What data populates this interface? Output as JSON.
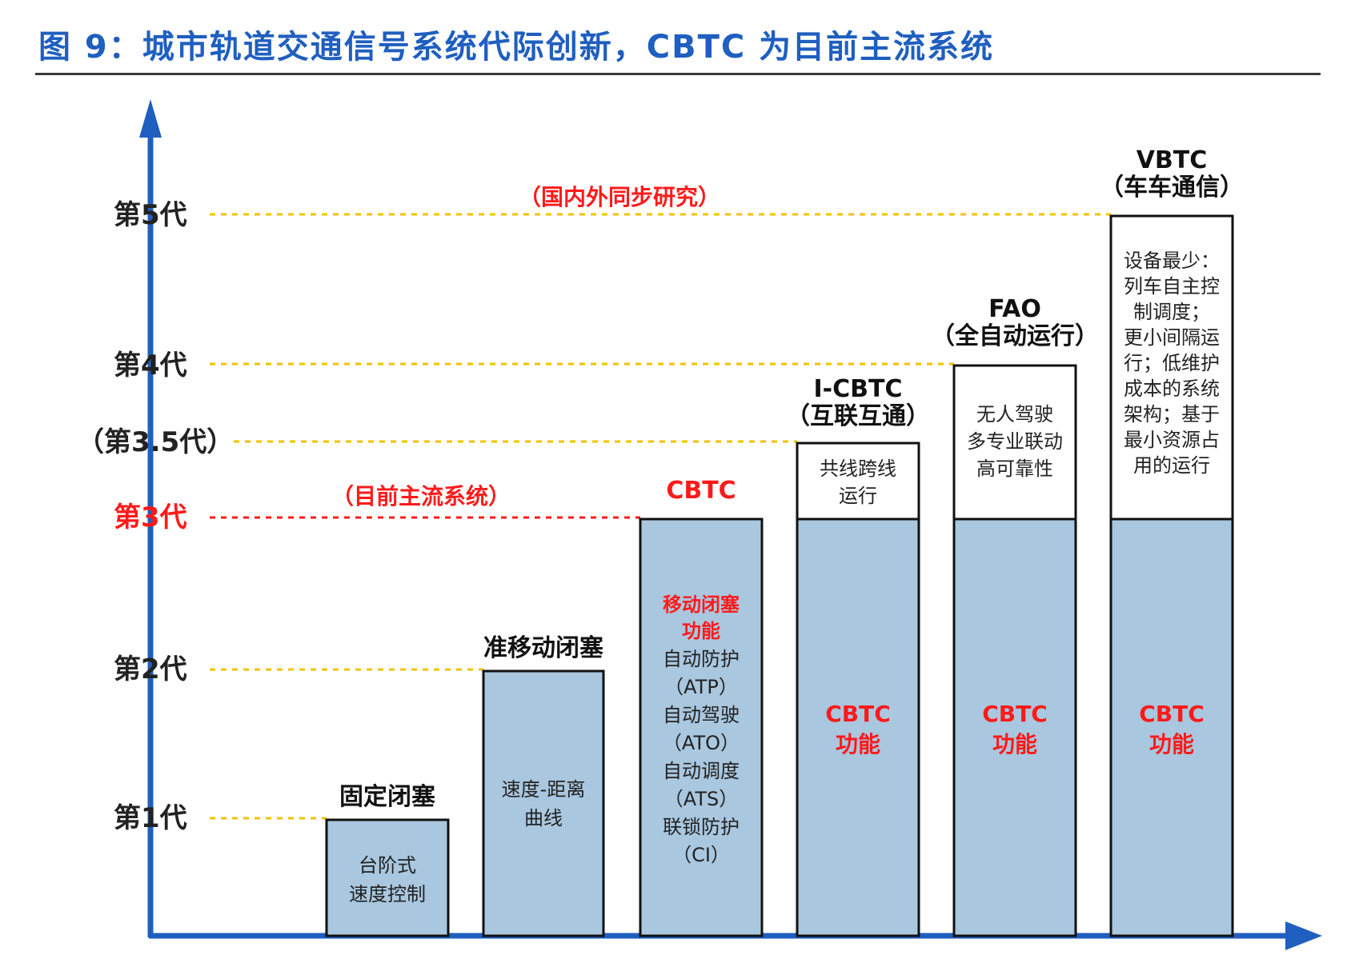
{
  "title": "图 9：城市轨道交通信号系统代际创新，CBTC 为目前主流系统",
  "colors": {
    "accent": "#1f5fbf",
    "box_fill": "#a9c7df",
    "red": "#ff1a1a",
    "yellow_line": "#f2c200"
  },
  "levels": {
    "gen1": "第1代",
    "gen2": "第2代",
    "gen3": "第3代",
    "gen35": "（第3.5代）",
    "gen4": "第4代",
    "gen5": "第5代"
  },
  "notes": {
    "mainstream": "（目前主流系统）",
    "research": "（国内外同步研究）"
  },
  "bars": {
    "b1": {
      "caption": "固定闭塞",
      "lines": [
        "台阶式",
        "速度控制"
      ]
    },
    "b2": {
      "caption": "准移动闭塞",
      "lines": [
        "速度-距离",
        "曲线"
      ]
    },
    "b3": {
      "caption": "CBTC",
      "red_lines": [
        "移动闭塞",
        "功能"
      ],
      "lines": [
        "自动防护",
        "（ATP）",
        "自动驾驶",
        "（ATO）",
        "自动调度",
        "（ATS）",
        "联锁防护",
        "（CI）"
      ]
    },
    "b4": {
      "caption": "I-CBTC",
      "caption2": "（互联互通）",
      "top_lines": [
        "共线跨线",
        "运行"
      ],
      "base_lines": [
        "CBTC",
        "功能"
      ]
    },
    "b5": {
      "caption": "FAO",
      "caption2": "（全自动运行）",
      "top_lines": [
        "无人驾驶",
        "多专业联动",
        "高可靠性"
      ],
      "base_lines": [
        "CBTC",
        "功能"
      ]
    },
    "b6": {
      "caption": "VBTC",
      "caption2": "（车车通信）",
      "top_lines": [
        "设备最少：",
        "列车自主控",
        "制调度；",
        "更小间隔运",
        "行；低维护",
        "成本的系统",
        "架构；基于",
        "最小资源占",
        "用的运行"
      ],
      "base_lines": [
        "CBTC",
        "功能"
      ]
    }
  }
}
